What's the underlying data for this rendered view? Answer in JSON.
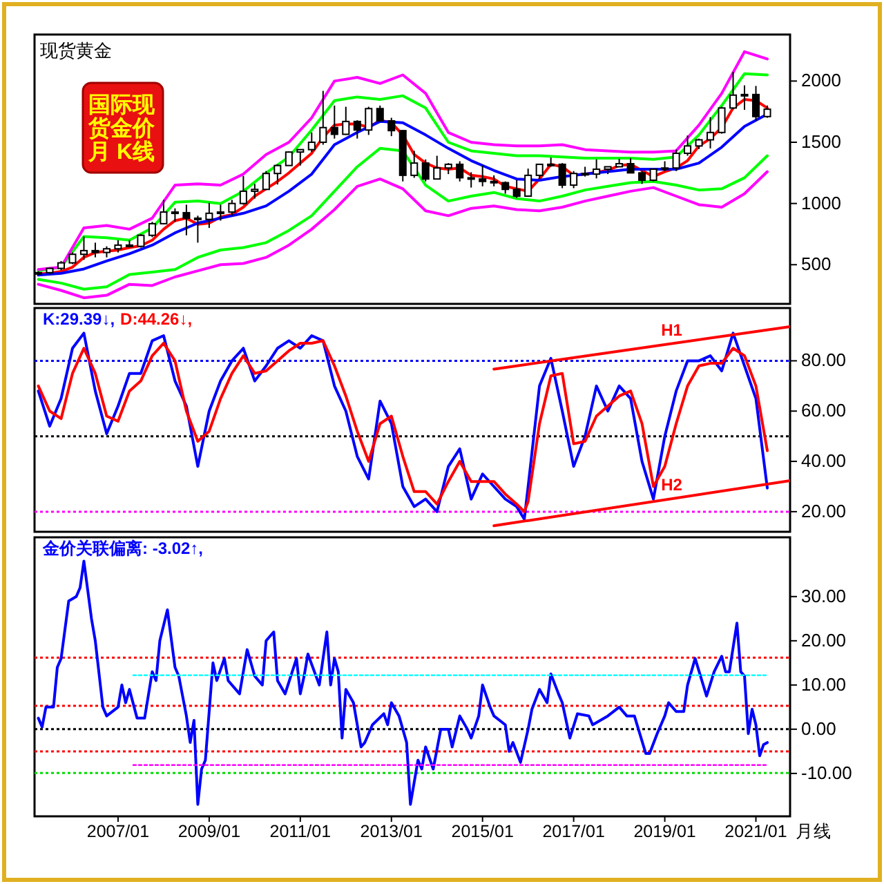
{
  "chart_data": [
    {
      "type": "candlestick",
      "title": "现货黄金",
      "annotations": [
        "国际现",
        "货金价",
        "月  K线"
      ],
      "x": [
        "2005-04",
        "2005-07",
        "2005-10",
        "2006-01",
        "2006-04",
        "2006-07",
        "2006-10",
        "2007-01",
        "2007-04",
        "2007-07",
        "2007-10",
        "2008-01",
        "2008-04",
        "2008-07",
        "2008-10",
        "2009-01",
        "2009-04",
        "2009-07",
        "2009-10",
        "2010-01",
        "2010-04",
        "2010-07",
        "2010-10",
        "2011-01",
        "2011-04",
        "2011-07",
        "2011-10",
        "2012-01",
        "2012-04",
        "2012-07",
        "2012-10",
        "2013-01",
        "2013-04",
        "2013-07",
        "2013-10",
        "2014-01",
        "2014-04",
        "2014-07",
        "2014-10",
        "2015-01",
        "2015-04",
        "2015-07",
        "2015-10",
        "2016-01",
        "2016-04",
        "2016-07",
        "2016-10",
        "2017-01",
        "2017-04",
        "2017-07",
        "2017-10",
        "2018-01",
        "2018-04",
        "2018-07",
        "2018-10",
        "2019-01",
        "2019-04",
        "2019-07",
        "2019-10",
        "2020-01",
        "2020-04",
        "2020-07",
        "2020-10",
        "2021-01",
        "2021-04"
      ],
      "ohlc": [
        [
          425,
          445,
          415,
          435
        ],
        [
          435,
          475,
          420,
          470
        ],
        [
          470,
          530,
          455,
          515
        ],
        [
          515,
          600,
          505,
          585
        ],
        [
          585,
          730,
          540,
          615
        ],
        [
          615,
          680,
          560,
          600
        ],
        [
          600,
          650,
          560,
          630
        ],
        [
          630,
          700,
          600,
          660
        ],
        [
          660,
          700,
          640,
          650
        ],
        [
          650,
          750,
          640,
          740
        ],
        [
          740,
          850,
          725,
          835
        ],
        [
          835,
          1030,
          830,
          930
        ],
        [
          930,
          960,
          850,
          925
        ],
        [
          925,
          990,
          740,
          880
        ],
        [
          880,
          900,
          680,
          870
        ],
        [
          870,
          1005,
          800,
          920
        ],
        [
          920,
          990,
          860,
          930
        ],
        [
          930,
          1030,
          900,
          1000
        ],
        [
          1000,
          1225,
          990,
          1100
        ],
        [
          1100,
          1160,
          1040,
          1115
        ],
        [
          1115,
          1265,
          1110,
          1245
        ],
        [
          1245,
          1320,
          1155,
          1310
        ],
        [
          1310,
          1425,
          1310,
          1420
        ],
        [
          1420,
          1440,
          1310,
          1440
        ],
        [
          1440,
          1580,
          1420,
          1500
        ],
        [
          1500,
          1920,
          1480,
          1620
        ],
        [
          1620,
          1800,
          1530,
          1565
        ],
        [
          1565,
          1790,
          1560,
          1670
        ],
        [
          1670,
          1680,
          1530,
          1600
        ],
        [
          1600,
          1790,
          1560,
          1775
        ],
        [
          1775,
          1800,
          1670,
          1675
        ],
        [
          1675,
          1700,
          1550,
          1595
        ],
        [
          1595,
          1600,
          1180,
          1230
        ],
        [
          1230,
          1430,
          1210,
          1330
        ],
        [
          1330,
          1360,
          1180,
          1200
        ],
        [
          1200,
          1390,
          1200,
          1290
        ],
        [
          1290,
          1330,
          1240,
          1320
        ],
        [
          1320,
          1345,
          1180,
          1210
        ],
        [
          1210,
          1255,
          1130,
          1200
        ],
        [
          1200,
          1310,
          1140,
          1180
        ],
        [
          1180,
          1230,
          1140,
          1170
        ],
        [
          1170,
          1180,
          1080,
          1115
        ],
        [
          1115,
          1190,
          1045,
          1060
        ],
        [
          1060,
          1285,
          1060,
          1230
        ],
        [
          1230,
          1320,
          1200,
          1320
        ],
        [
          1320,
          1375,
          1300,
          1320
        ],
        [
          1320,
          1330,
          1125,
          1150
        ],
        [
          1150,
          1265,
          1125,
          1245
        ],
        [
          1245,
          1300,
          1220,
          1240
        ],
        [
          1240,
          1360,
          1205,
          1280
        ],
        [
          1280,
          1300,
          1240,
          1300
        ],
        [
          1300,
          1365,
          1300,
          1325
        ],
        [
          1325,
          1370,
          1250,
          1250
        ],
        [
          1250,
          1265,
          1160,
          1190
        ],
        [
          1190,
          1285,
          1180,
          1280
        ],
        [
          1280,
          1345,
          1265,
          1290
        ],
        [
          1290,
          1440,
          1265,
          1410
        ],
        [
          1410,
          1555,
          1390,
          1470
        ],
        [
          1470,
          1530,
          1445,
          1520
        ],
        [
          1520,
          1705,
          1450,
          1580
        ],
        [
          1580,
          1790,
          1570,
          1780
        ],
        [
          1780,
          2075,
          1770,
          1885
        ],
        [
          1885,
          1965,
          1765,
          1890
        ],
        [
          1890,
          1960,
          1675,
          1710
        ],
        [
          1710,
          1800,
          1700,
          1770
        ]
      ],
      "series": [
        {
          "type": "line",
          "color": "#ff0000",
          "values": [
            425,
            430,
            445,
            480,
            560,
            600,
            610,
            620,
            640,
            655,
            700,
            790,
            860,
            880,
            830,
            840,
            890,
            910,
            970,
            1060,
            1120,
            1180,
            1250,
            1330,
            1410,
            1540,
            1640,
            1650,
            1650,
            1620,
            1680,
            1660,
            1560,
            1400,
            1330,
            1290,
            1280,
            1290,
            1230,
            1220,
            1200,
            1140,
            1120,
            1100,
            1200,
            1320,
            1300,
            1230,
            1240,
            1255,
            1270,
            1310,
            1320,
            1270,
            1220,
            1260,
            1290,
            1350,
            1470,
            1530,
            1620,
            1780,
            1850,
            1840,
            1780
          ]
        },
        {
          "type": "line",
          "color": "#0000ff",
          "x": [
            "2005-04",
            "2005-10",
            "2006-04",
            "2006-10",
            "2007-04",
            "2007-10",
            "2008-04",
            "2008-10",
            "2009-04",
            "2009-10",
            "2010-04",
            "2010-10",
            "2011-04",
            "2011-10",
            "2012-04",
            "2012-10",
            "2013-04",
            "2013-10",
            "2014-04",
            "2014-10",
            "2015-04",
            "2015-10",
            "2016-04",
            "2016-10",
            "2017-04",
            "2017-10",
            "2018-04",
            "2018-10",
            "2019-04",
            "2019-10",
            "2020-04",
            "2020-10",
            "2021-04"
          ],
          "values": [
            415,
            430,
            465,
            530,
            590,
            660,
            760,
            840,
            880,
            920,
            980,
            1100,
            1240,
            1480,
            1580,
            1670,
            1660,
            1560,
            1450,
            1350,
            1270,
            1200,
            1190,
            1220,
            1240,
            1260,
            1280,
            1280,
            1280,
            1330,
            1460,
            1630,
            1730
          ]
        },
        {
          "type": "line",
          "color": "#00ff00",
          "x": [
            "2005-04",
            "2005-10",
            "2006-04",
            "2006-10",
            "2007-04",
            "2007-10",
            "2008-04",
            "2008-10",
            "2009-04",
            "2009-10",
            "2010-04",
            "2010-10",
            "2011-04",
            "2011-10",
            "2012-04",
            "2012-10",
            "2013-04",
            "2013-10",
            "2014-04",
            "2014-10",
            "2015-04",
            "2015-10",
            "2016-04",
            "2016-10",
            "2017-04",
            "2017-10",
            "2018-04",
            "2018-10",
            "2019-04",
            "2019-10",
            "2020-04",
            "2020-10",
            "2021-04"
          ],
          "values": [
            450,
            480,
            730,
            720,
            700,
            800,
            1010,
            1020,
            1000,
            1100,
            1250,
            1380,
            1600,
            1840,
            1870,
            1850,
            1880,
            1780,
            1500,
            1430,
            1410,
            1390,
            1390,
            1380,
            1370,
            1370,
            1370,
            1360,
            1380,
            1560,
            1800,
            2060,
            2050
          ]
        },
        {
          "type": "line",
          "color": "#00ff00",
          "x": [
            "2005-04",
            "2005-10",
            "2006-04",
            "2006-10",
            "2007-04",
            "2007-10",
            "2008-04",
            "2008-10",
            "2009-04",
            "2009-10",
            "2010-04",
            "2010-10",
            "2011-04",
            "2011-10",
            "2012-04",
            "2012-10",
            "2013-04",
            "2013-10",
            "2014-04",
            "2014-10",
            "2015-04",
            "2015-10",
            "2016-04",
            "2016-10",
            "2017-04",
            "2017-10",
            "2018-04",
            "2018-10",
            "2019-04",
            "2019-10",
            "2020-04",
            "2020-10",
            "2021-04"
          ],
          "values": [
            380,
            350,
            300,
            320,
            420,
            440,
            460,
            560,
            620,
            640,
            680,
            780,
            900,
            1100,
            1300,
            1450,
            1430,
            1150,
            1020,
            1060,
            1090,
            1040,
            1020,
            1060,
            1110,
            1140,
            1170,
            1180,
            1150,
            1110,
            1120,
            1210,
            1390
          ]
        },
        {
          "type": "line",
          "color": "#ff00ff",
          "x": [
            "2005-04",
            "2005-10",
            "2006-04",
            "2006-10",
            "2007-04",
            "2007-10",
            "2008-04",
            "2008-10",
            "2009-04",
            "2009-10",
            "2010-04",
            "2010-10",
            "2011-04",
            "2011-10",
            "2012-04",
            "2012-10",
            "2013-04",
            "2013-10",
            "2014-04",
            "2014-10",
            "2015-04",
            "2015-10",
            "2016-04",
            "2016-10",
            "2017-04",
            "2017-10",
            "2018-04",
            "2018-10",
            "2019-04",
            "2019-10",
            "2020-04",
            "2020-10",
            "2021-04"
          ],
          "values": [
            460,
            480,
            800,
            820,
            790,
            880,
            1150,
            1160,
            1150,
            1240,
            1400,
            1500,
            1700,
            2000,
            2030,
            1980,
            2050,
            1900,
            1580,
            1500,
            1480,
            1470,
            1470,
            1480,
            1440,
            1430,
            1420,
            1420,
            1430,
            1640,
            1900,
            2240,
            2180
          ]
        },
        {
          "type": "line",
          "color": "#ff00ff",
          "x": [
            "2005-04",
            "2005-10",
            "2006-04",
            "2006-10",
            "2007-04",
            "2007-10",
            "2008-04",
            "2008-10",
            "2009-04",
            "2009-10",
            "2010-04",
            "2010-10",
            "2011-04",
            "2011-10",
            "2012-04",
            "2012-10",
            "2013-04",
            "2013-10",
            "2014-04",
            "2014-10",
            "2015-04",
            "2015-10",
            "2016-04",
            "2016-10",
            "2017-04",
            "2017-10",
            "2018-04",
            "2018-10",
            "2019-04",
            "2019-10",
            "2020-04",
            "2020-10",
            "2021-04"
          ],
          "values": [
            340,
            290,
            230,
            250,
            340,
            330,
            400,
            450,
            500,
            510,
            560,
            660,
            790,
            950,
            1140,
            1200,
            1120,
            940,
            900,
            960,
            980,
            950,
            940,
            970,
            1020,
            1060,
            1100,
            1130,
            1060,
            990,
            970,
            1080,
            1260
          ]
        }
      ],
      "xlim": [
        "2005-03",
        "2021-10"
      ],
      "ylim": [
        180,
        2380
      ],
      "yticks": [
        500,
        1000,
        1500,
        2000
      ],
      "tick_labels": "y"
    },
    {
      "type": "line",
      "annotations": [
        "K:29.39↓,",
        "D:44.26↓,"
      ],
      "x": [
        "2005-04",
        "2005-07",
        "2005-10",
        "2006-01",
        "2006-04",
        "2006-07",
        "2006-10",
        "2007-01",
        "2007-04",
        "2007-07",
        "2007-10",
        "2008-01",
        "2008-04",
        "2008-07",
        "2008-10",
        "2009-01",
        "2009-04",
        "2009-07",
        "2009-10",
        "2010-01",
        "2010-04",
        "2010-07",
        "2010-10",
        "2011-01",
        "2011-04",
        "2011-07",
        "2011-10",
        "2012-01",
        "2012-04",
        "2012-07",
        "2012-10",
        "2013-01",
        "2013-04",
        "2013-07",
        "2013-10",
        "2014-01",
        "2014-04",
        "2014-07",
        "2014-10",
        "2015-01",
        "2015-04",
        "2015-07",
        "2015-10",
        "2015-12",
        "2016-01",
        "2016-04",
        "2016-07",
        "2016-10",
        "2017-01",
        "2017-04",
        "2017-07",
        "2017-10",
        "2018-01",
        "2018-04",
        "2018-07",
        "2018-10",
        "2019-01",
        "2019-04",
        "2019-07",
        "2019-10",
        "2020-01",
        "2020-04",
        "2020-07",
        "2020-10",
        "2021-01",
        "2021-04"
      ],
      "series": [
        {
          "color": "#0000ff",
          "values": [
            68,
            54,
            65,
            85,
            91,
            68,
            51,
            62,
            75,
            75,
            88,
            90,
            72,
            62,
            38,
            60,
            72,
            80,
            85,
            72,
            78,
            85,
            88,
            85,
            90,
            88,
            70,
            60,
            42,
            33,
            64,
            55,
            30,
            22,
            25,
            20,
            38,
            45,
            25,
            35,
            30,
            25,
            22,
            17,
            30,
            70,
            81,
            60,
            38,
            50,
            70,
            60,
            70,
            65,
            40,
            25,
            50,
            68,
            80,
            80,
            82,
            76,
            91,
            78,
            65,
            29.39
          ]
        },
        {
          "color": "#ff0000",
          "values": [
            70,
            60,
            57,
            75,
            85,
            75,
            58,
            56,
            68,
            72,
            82,
            87,
            80,
            60,
            48,
            52,
            65,
            75,
            82,
            75,
            76,
            80,
            84,
            87,
            87,
            88,
            78,
            66,
            52,
            40,
            55,
            58,
            42,
            28,
            28,
            23,
            32,
            40,
            32,
            32,
            32,
            27,
            23,
            20,
            24,
            55,
            74,
            75,
            47,
            48,
            58,
            62,
            66,
            68,
            55,
            30,
            38,
            55,
            70,
            78,
            79,
            79,
            85,
            82,
            70,
            44.26
          ]
        },
        {
          "type": "line",
          "name": "H1",
          "color": "#ff0000",
          "x": [
            "2015-04",
            "2021-10"
          ],
          "values": [
            76.7,
            93.6
          ]
        },
        {
          "type": "line",
          "name": "H2",
          "color": "#ff0000",
          "x": [
            "2015-04",
            "2021-10"
          ],
          "values": [
            14.4,
            32.3
          ]
        }
      ],
      "ref_lines": [
        {
          "axis": "y",
          "value": 80,
          "color": "#0000ff",
          "line_style": "dotted"
        },
        {
          "axis": "y",
          "value": 50,
          "color": "#000000",
          "line_style": "dotted"
        },
        {
          "axis": "y",
          "value": 20,
          "color": "#ff00ff",
          "line_style": "dotted"
        }
      ],
      "xlim": [
        "2005-03",
        "2021-10"
      ],
      "ylim": [
        12,
        101
      ],
      "yticks": [
        {
          "value": 20,
          "label": "20.00"
        },
        {
          "value": 40,
          "label": "40.00"
        },
        {
          "value": 60,
          "label": "60.00"
        },
        {
          "value": 80,
          "label": "80.00"
        }
      ],
      "tick_labels": "y"
    },
    {
      "type": "line",
      "annotations": [
        "金价关联偏离: -3.02↑,"
      ],
      "xlabel": "月线",
      "series": [
        {
          "color": "#0000ff",
          "x": [
            "2005-04",
            "2005-05",
            "2005-06",
            "2005-08",
            "2005-09",
            "2005-10",
            "2005-12",
            "2006-02",
            "2006-03",
            "2006-04",
            "2006-06",
            "2006-07",
            "2006-09",
            "2006-10",
            "2007-01",
            "2007-02",
            "2007-03",
            "2007-04",
            "2007-06",
            "2007-08",
            "2007-10",
            "2007-11",
            "2007-12",
            "2008-02",
            "2008-04",
            "2008-05",
            "2008-07",
            "2008-08",
            "2008-09",
            "2008-10",
            "2008-11",
            "2008-12",
            "2009-02",
            "2009-03",
            "2009-05",
            "2009-06",
            "2009-09",
            "2009-11",
            "2010-01",
            "2010-03",
            "2010-04",
            "2010-06",
            "2010-07",
            "2010-09",
            "2010-12",
            "2011-01",
            "2011-02",
            "2011-03",
            "2011-06",
            "2011-08",
            "2011-09",
            "2011-10",
            "2011-11",
            "2011-12",
            "2012-01",
            "2012-03",
            "2012-05",
            "2012-06",
            "2012-08",
            "2012-11",
            "2012-12",
            "2013-01",
            "2013-03",
            "2013-05",
            "2013-06",
            "2013-08",
            "2013-09",
            "2013-10",
            "2013-12",
            "2014-02",
            "2014-04",
            "2014-05",
            "2014-07",
            "2014-09",
            "2014-10",
            "2014-12",
            "2015-01",
            "2015-03",
            "2015-04",
            "2015-07",
            "2015-08",
            "2015-09",
            "2015-11",
            "2016-01",
            "2016-02",
            "2016-04",
            "2016-06",
            "2016-07",
            "2016-09",
            "2016-10",
            "2016-12",
            "2017-02",
            "2017-05",
            "2017-06",
            "2017-10",
            "2018-01",
            "2018-03",
            "2018-05",
            "2018-08",
            "2018-09",
            "2018-11",
            "2019-01",
            "2019-02",
            "2019-04",
            "2019-06",
            "2019-07",
            "2019-09",
            "2019-12",
            "2020-02",
            "2020-04",
            "2020-05",
            "2020-06",
            "2020-08",
            "2020-09",
            "2020-10",
            "2020-11",
            "2020-12",
            "2021-01",
            "2021-02",
            "2021-03",
            "2021-04"
          ],
          "values": [
            2.5,
            0.5,
            5,
            5,
            14,
            16,
            29,
            30,
            32,
            38,
            25,
            20,
            5,
            3,
            5,
            10,
            6,
            9,
            2.5,
            2.5,
            13,
            11,
            20,
            27,
            14,
            12,
            3,
            -3,
            2,
            -17,
            -9,
            -7,
            15,
            11,
            16,
            11,
            8,
            18,
            12,
            10,
            20,
            22,
            11,
            8,
            16,
            8,
            12,
            17,
            10,
            22,
            10,
            16,
            13,
            -2,
            9,
            6,
            -4,
            -3,
            1,
            3.5,
            1,
            6,
            3,
            -3,
            -17,
            -7,
            -9,
            -4,
            -9,
            0,
            0,
            -4,
            3,
            0,
            -2,
            3,
            10,
            5,
            3,
            1,
            -5,
            -3,
            -7.5,
            0,
            4.5,
            9,
            6,
            12.5,
            8,
            6,
            -2,
            3.5,
            3,
            1,
            3,
            5,
            3,
            3,
            -5.5,
            -5.5,
            -1,
            3,
            6,
            4,
            4,
            10,
            16,
            7.5,
            13,
            16.5,
            13,
            13,
            24,
            13,
            12,
            -1,
            4.5,
            1,
            -6,
            -3.5,
            -3.02
          ]
        },
        {
          "color": "#00ffff",
          "line_style": "dotted",
          "x": [
            "2007-05",
            "2021-04"
          ],
          "values": [
            12.2,
            12.2
          ]
        },
        {
          "color": "#ff00ff",
          "line_style": "dotted",
          "x": [
            "2007-05",
            "2021-04"
          ],
          "values": [
            -8.1,
            -8.1
          ]
        }
      ],
      "ref_lines": [
        {
          "axis": "y",
          "value": 16.2,
          "color": "#ff0000",
          "line_style": "dotted"
        },
        {
          "axis": "y",
          "value": 5.3,
          "color": "#ff0000",
          "line_style": "dotted"
        },
        {
          "axis": "y",
          "value": 0,
          "color": "#000000",
          "line_style": "dotted"
        },
        {
          "axis": "y",
          "value": -5,
          "color": "#ff0000",
          "line_style": "dotted"
        },
        {
          "axis": "y",
          "value": -9.9,
          "color": "#00dd00",
          "line_style": "dotted"
        }
      ],
      "xlim": [
        "2005-03",
        "2021-10"
      ],
      "xticks": [
        {
          "value": "2007-01",
          "label": "2007/01"
        },
        {
          "value": "2009-01",
          "label": "2009/01"
        },
        {
          "value": "2011-01",
          "label": "2011/01"
        },
        {
          "value": "2013-01",
          "label": "2013/01"
        },
        {
          "value": "2015-01",
          "label": "2015/01"
        },
        {
          "value": "2017-01",
          "label": "2017/01"
        },
        {
          "value": "2019-01",
          "label": "2019/01"
        },
        {
          "value": "2021-01",
          "label": "2021/01"
        }
      ],
      "ylim": [
        -19.7,
        43.4
      ],
      "yticks": [
        {
          "value": -10,
          "label": "-10.00"
        },
        {
          "value": 0,
          "label": "0.00"
        },
        {
          "value": 10,
          "label": "10.00"
        },
        {
          "value": 20,
          "label": "20.00"
        },
        {
          "value": 30,
          "label": "30.00"
        }
      ]
    }
  ]
}
